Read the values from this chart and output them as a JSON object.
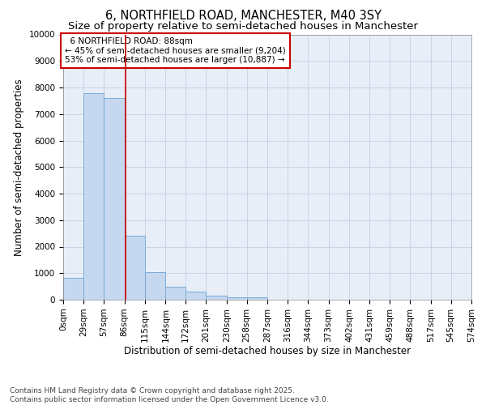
{
  "title": "6, NORTHFIELD ROAD, MANCHESTER, M40 3SY",
  "subtitle": "Size of property relative to semi-detached houses in Manchester",
  "xlabel": "Distribution of semi-detached houses by size in Manchester",
  "ylabel": "Number of semi-detached properties",
  "footer_line1": "Contains HM Land Registry data © Crown copyright and database right 2025.",
  "footer_line2": "Contains public sector information licensed under the Open Government Licence v3.0.",
  "property_label": "6 NORTHFIELD ROAD: 88sqm",
  "pct_smaller": "45% of semi-detached houses are smaller (9,204)",
  "pct_larger": "53% of semi-detached houses are larger (10,887)",
  "property_size_sqm": 88,
  "bin_edges": [
    0,
    29,
    57,
    86,
    115,
    144,
    172,
    201,
    230,
    258,
    287,
    316,
    344,
    373,
    402,
    431,
    459,
    488,
    517,
    545,
    574
  ],
  "bar_heights": [
    820,
    7800,
    7600,
    2400,
    1050,
    480,
    300,
    140,
    80,
    100,
    0,
    0,
    0,
    0,
    0,
    0,
    0,
    0,
    0,
    0
  ],
  "bar_color": "#c5d8f0",
  "bar_edge_color": "#7baad4",
  "vline_color": "#cc0000",
  "grid_color": "#c8d4e8",
  "background_color": "#e8eef8",
  "annotation_box_color": "#ffffff",
  "annotation_box_edge": "#cc0000",
  "ylim": [
    0,
    10000
  ],
  "yticks": [
    0,
    1000,
    2000,
    3000,
    4000,
    5000,
    6000,
    7000,
    8000,
    9000,
    10000
  ],
  "title_fontsize": 10.5,
  "subtitle_fontsize": 9.5,
  "axis_label_fontsize": 8.5,
  "tick_fontsize": 7.5,
  "annotation_fontsize": 7.5,
  "footer_fontsize": 6.5
}
